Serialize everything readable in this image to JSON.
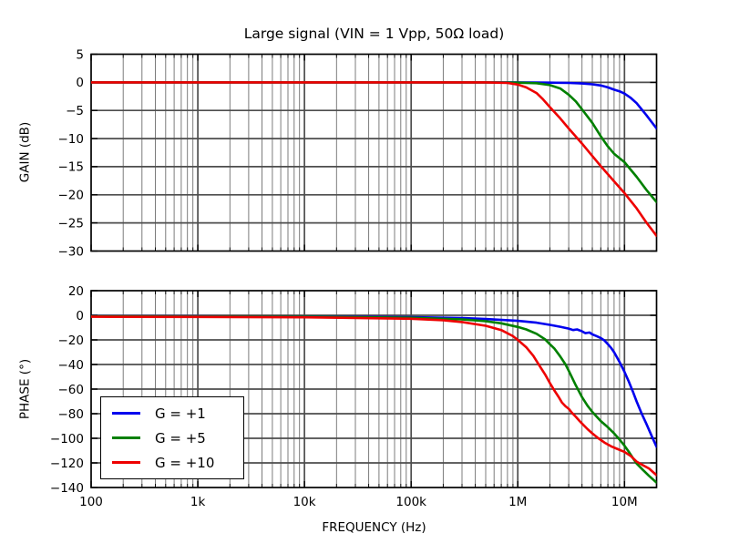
{
  "figure": {
    "title": "Large signal (VIN = 1 Vpp, 50Ω load)",
    "xlabel": "FREQUENCY (Hz)",
    "background": "#ffffff"
  },
  "style": {
    "frame_color": "#000000",
    "grid_major_color": "#4d4d4d",
    "grid_minor_color": "#6e6e6e",
    "tick_color": "#000000",
    "text_color": "#000000"
  },
  "legend": {
    "position": "lower left",
    "entries": [
      {
        "label": "G = +1",
        "color": "#0000ee"
      },
      {
        "label": "G = +5",
        "color": "#008000"
      },
      {
        "label": "G = +10",
        "color": "#ee0000"
      }
    ]
  },
  "chart_data": [
    {
      "type": "line",
      "title": "Large signal (VIN = 1 Vpp, 50Ω load)",
      "xlabel": "FREQUENCY (Hz)",
      "ylabel": "GAIN (dB)",
      "xscale": "log",
      "grid": "major+minor",
      "xlim": [
        100,
        20000000
      ],
      "ylim": [
        -30,
        5
      ],
      "yticks": [
        5,
        0,
        -5,
        -10,
        -15,
        -20,
        -25,
        -30
      ],
      "xticks": [
        {
          "value": 100,
          "label": "100"
        },
        {
          "value": 1000,
          "label": "1k"
        },
        {
          "value": 10000,
          "label": "10k"
        },
        {
          "value": 100000,
          "label": "100k"
        },
        {
          "value": 1000000,
          "label": "1M"
        },
        {
          "value": 10000000,
          "label": "10M"
        }
      ],
      "xticklabels_visible": false,
      "series": [
        {
          "name": "G = +1",
          "color": "#0000ee",
          "x": [
            100,
            1000,
            10000,
            100000,
            500000,
            1000000,
            2000000,
            3000000,
            4000000,
            5000000,
            6000000,
            7000000,
            8000000,
            9000000,
            10000000,
            11500000,
            13000000,
            16000000,
            20000000
          ],
          "y": [
            0,
            0,
            0,
            0,
            0,
            0,
            -0.05,
            -0.1,
            -0.2,
            -0.35,
            -0.55,
            -0.9,
            -1.3,
            -1.6,
            -2.0,
            -2.8,
            -3.7,
            -5.8,
            -8.2
          ]
        },
        {
          "name": "G = +5",
          "color": "#008000",
          "x": [
            100,
            1000,
            10000,
            100000,
            500000,
            1000000,
            1500000,
            2000000,
            2500000,
            3000000,
            3500000,
            4000000,
            5000000,
            6000000,
            7000000,
            8000000,
            10000000,
            13000000,
            16000000,
            20000000
          ],
          "y": [
            0,
            0,
            0,
            0,
            0,
            -0.05,
            -0.15,
            -0.5,
            -1.1,
            -2.2,
            -3.4,
            -4.8,
            -7.2,
            -9.6,
            -11.4,
            -12.7,
            -14.2,
            -16.8,
            -19.1,
            -21.3
          ]
        },
        {
          "name": "G = +10",
          "color": "#ee0000",
          "x": [
            100,
            1000,
            10000,
            100000,
            500000,
            800000,
            1000000,
            1200000,
            1500000,
            1700000,
            2000000,
            2500000,
            3000000,
            4000000,
            5000000,
            6000000,
            8000000,
            10000000,
            13000000,
            16000000,
            20000000
          ],
          "y": [
            0,
            0,
            0,
            0,
            0,
            -0.1,
            -0.4,
            -0.9,
            -1.9,
            -2.9,
            -4.4,
            -6.4,
            -8.2,
            -10.9,
            -13.1,
            -14.9,
            -17.6,
            -19.7,
            -22.4,
            -24.9,
            -27.3
          ]
        }
      ]
    },
    {
      "type": "line",
      "ylabel": "PHASE (°)",
      "xlabel": "FREQUENCY (Hz)",
      "xscale": "log",
      "grid": "major+minor",
      "legend_position": "lower left",
      "xlim": [
        100,
        20000000
      ],
      "ylim": [
        -140,
        20
      ],
      "yticks": [
        20,
        0,
        -20,
        -40,
        -60,
        -80,
        -100,
        -120,
        -140
      ],
      "xticks": [
        {
          "value": 100,
          "label": "100"
        },
        {
          "value": 1000,
          "label": "1k"
        },
        {
          "value": 10000,
          "label": "10k"
        },
        {
          "value": 100000,
          "label": "100k"
        },
        {
          "value": 1000000,
          "label": "1M"
        },
        {
          "value": 10000000,
          "label": "10M"
        }
      ],
      "xticklabels_visible": true,
      "series": [
        {
          "name": "G = +1",
          "color": "#0000ee",
          "x": [
            100,
            1000,
            10000,
            100000,
            300000,
            500000,
            1000000,
            1500000,
            2000000,
            2500000,
            3000000,
            3300000,
            3600000,
            4000000,
            4300000,
            4700000,
            5000000,
            5500000,
            6000000,
            6500000,
            7000000,
            7500000,
            8000000,
            9000000,
            10000000,
            11000000,
            12000000,
            13000000,
            14500000,
            16000000,
            18000000,
            20000000
          ],
          "y": [
            -0.8,
            -0.9,
            -1.0,
            -1.5,
            -2.2,
            -3.0,
            -4.5,
            -6.0,
            -7.8,
            -9.3,
            -10.8,
            -12.0,
            -11.5,
            -13.0,
            -14.5,
            -14.0,
            -15.5,
            -17.0,
            -18.5,
            -20.5,
            -23.5,
            -26.5,
            -30,
            -38,
            -46,
            -54,
            -62,
            -70,
            -80,
            -88,
            -98,
            -107
          ]
        },
        {
          "name": "G = +5",
          "color": "#008000",
          "x": [
            100,
            1000,
            10000,
            100000,
            300000,
            500000,
            700000,
            1000000,
            1200000,
            1500000,
            1800000,
            2000000,
            2200000,
            2500000,
            2800000,
            3000000,
            3500000,
            4000000,
            4500000,
            5000000,
            5500000,
            6000000,
            7000000,
            8000000,
            9000000,
            10000000,
            11000000,
            12000000,
            13000000,
            15000000,
            17000000,
            20000000
          ],
          "y": [
            -0.9,
            -1.0,
            -1.2,
            -2.0,
            -3.3,
            -4.8,
            -6.5,
            -9.5,
            -11.5,
            -15,
            -19.5,
            -23.5,
            -27,
            -33.5,
            -40,
            -45,
            -57,
            -66.5,
            -73.5,
            -78.5,
            -82.5,
            -86,
            -91,
            -96,
            -101,
            -106,
            -111,
            -116,
            -120.5,
            -126,
            -130.5,
            -136
          ]
        },
        {
          "name": "G = +10",
          "color": "#ee0000",
          "x": [
            100,
            1000,
            10000,
            100000,
            200000,
            300000,
            500000,
            700000,
            900000,
            1000000,
            1200000,
            1400000,
            1600000,
            1800000,
            2000000,
            2200000,
            2400000,
            2600000,
            2800000,
            3000000,
            3200000,
            3500000,
            3800000,
            4000000,
            4500000,
            5000000,
            5700000,
            6500000,
            7500000,
            8500000,
            10000000,
            11500000,
            13000000,
            15000000,
            17000000,
            20000000
          ],
          "y": [
            -1.2,
            -1.3,
            -1.6,
            -2.8,
            -4.0,
            -5.5,
            -8.5,
            -12,
            -17,
            -20,
            -26,
            -33,
            -41,
            -48,
            -55,
            -61,
            -66,
            -71,
            -74,
            -76,
            -79,
            -82.5,
            -86,
            -88,
            -92.5,
            -96,
            -100,
            -103.5,
            -106.5,
            -108.5,
            -111,
            -114.5,
            -119,
            -122,
            -124.5,
            -130
          ]
        }
      ]
    }
  ]
}
